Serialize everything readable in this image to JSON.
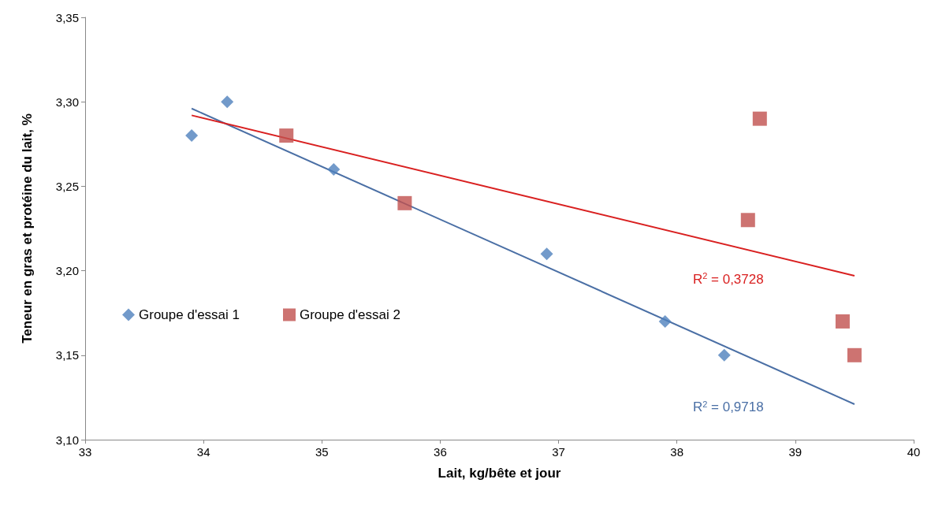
{
  "chart_data": {
    "type": "scatter",
    "xlabel": "Lait, kg/bête et jour",
    "ylabel": "Teneur en gras et protéine du lait, %",
    "xlim": [
      33,
      40
    ],
    "xticks": [
      33,
      34,
      35,
      36,
      37,
      38,
      39,
      40
    ],
    "ylim": [
      3.1,
      3.35
    ],
    "yticks": [
      {
        "value": 3.1,
        "label": "3,10"
      },
      {
        "value": 3.15,
        "label": "3,15"
      },
      {
        "value": 3.2,
        "label": "3,20"
      },
      {
        "value": 3.25,
        "label": "3,25"
      },
      {
        "value": 3.3,
        "label": "3,30"
      },
      {
        "value": 3.35,
        "label": "3,35"
      }
    ],
    "grid": false,
    "legend": "left",
    "series": [
      {
        "name": "Groupe d'essai 1",
        "color": "#4f81bd",
        "marker": "diamond",
        "x": [
          33.9,
          34.2,
          35.1,
          36.9,
          37.9,
          38.4
        ],
        "values": [
          3.28,
          3.3,
          3.26,
          3.21,
          3.17,
          3.15
        ]
      },
      {
        "name": "Groupe d'essai 2",
        "color": "#c0504d",
        "marker": "square",
        "x": [
          34.7,
          35.7,
          38.6,
          38.7,
          39.4,
          39.5
        ],
        "values": [
          3.28,
          3.24,
          3.23,
          3.29,
          3.17,
          3.15
        ]
      },
      {
        "type": "line",
        "color": "#4a6fa5",
        "marker": "none",
        "x": [
          33.9,
          39.5
        ],
        "values": [
          3.296,
          3.121
        ]
      },
      {
        "type": "line",
        "color": "#d92020",
        "marker": "none",
        "x": [
          33.9,
          39.5
        ],
        "values": [
          3.292,
          3.197
        ]
      }
    ],
    "annotations": [
      "R$^{2}$ = 0,9718",
      "R$^{2}$ = 0,3728"
    ]
  }
}
